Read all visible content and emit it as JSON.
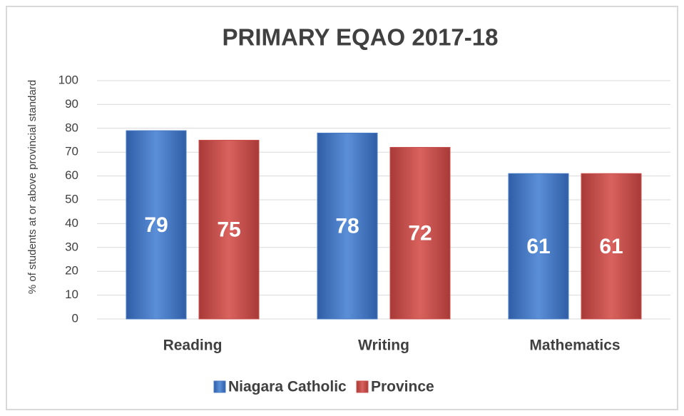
{
  "chart_data": {
    "type": "bar",
    "title": "PRIMARY EQAO 2017-18",
    "y_label": "% of students at or above provincial standard",
    "categories": [
      "Reading",
      "Writing",
      "Mathematics"
    ],
    "series": [
      {
        "name": "Niagara Catholic",
        "color": "#4a7cc4",
        "values": [
          79,
          78,
          61
        ]
      },
      {
        "name": "Province",
        "color": "#c9504d",
        "values": [
          75,
          72,
          61
        ]
      }
    ],
    "ylim": [
      0,
      100
    ],
    "yticks": [
      0,
      10,
      20,
      30,
      40,
      50,
      60,
      70,
      80,
      90,
      100
    ],
    "grid": true,
    "legend": "bottom"
  }
}
